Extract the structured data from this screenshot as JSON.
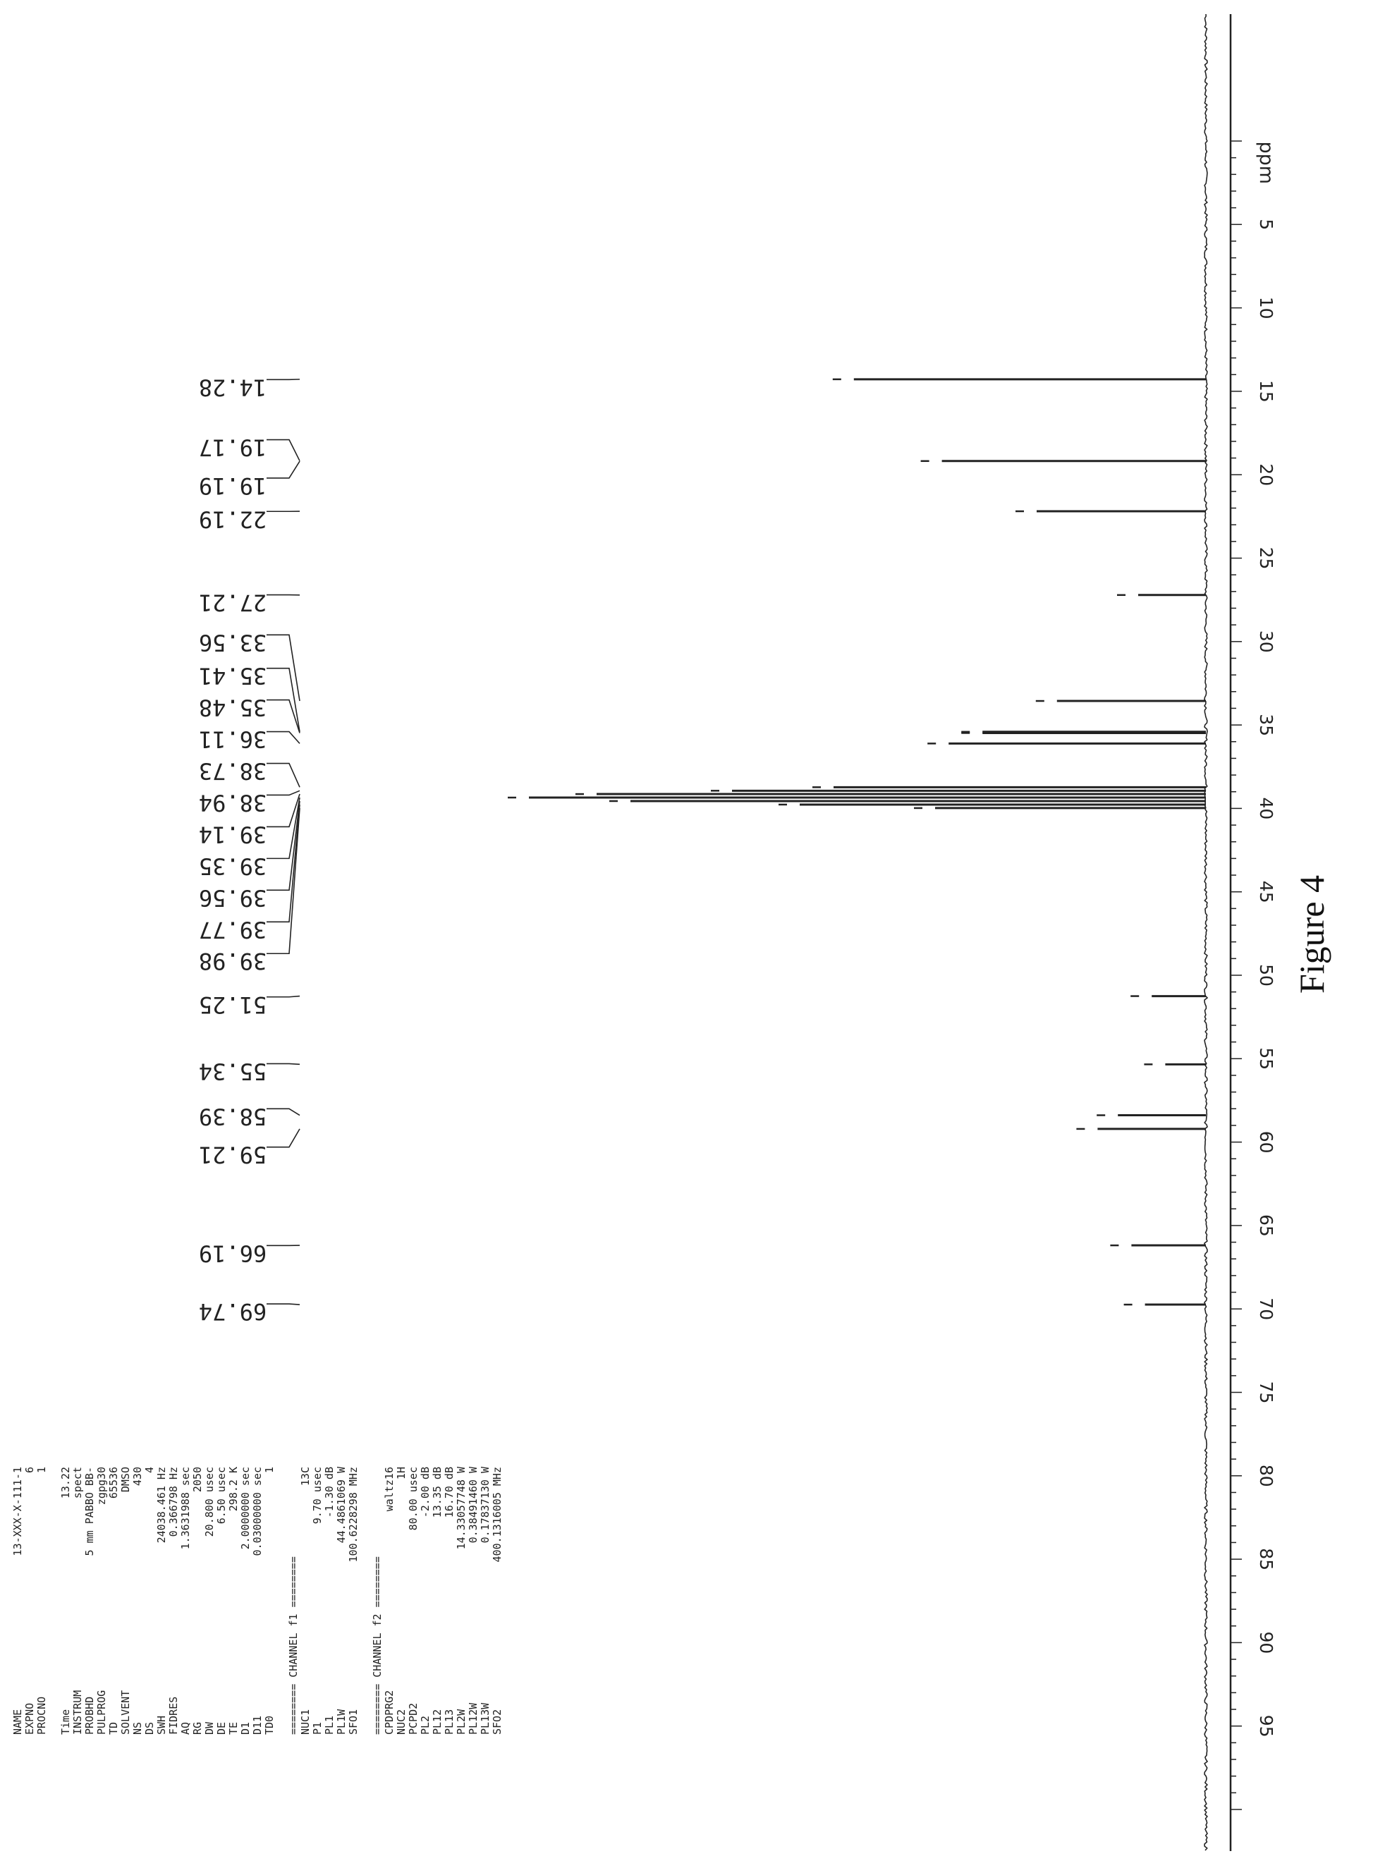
{
  "figure_caption": "Figure 4",
  "chart_data": {
    "type": "line",
    "title": "",
    "xlabel": "",
    "ylabel": "",
    "axis_unit": "ppm",
    "axis_reversed": true,
    "xlim": [
      100,
      0
    ],
    "ticks": [
      95,
      90,
      85,
      80,
      75,
      70,
      65,
      60,
      55,
      50,
      45,
      40,
      35,
      30,
      25,
      20,
      15,
      10,
      5
    ],
    "tick_labels": [
      "95",
      "90",
      "85",
      "80",
      "75",
      "70",
      "65",
      "60",
      "55",
      "50",
      "45",
      "40",
      "35",
      "30",
      "25",
      "20",
      "15",
      "10",
      "5"
    ],
    "peak_labels": [
      "14.28",
      "19.17",
      "19.19",
      "22.19",
      "27.21",
      "33.56",
      "35.41",
      "35.48",
      "36.11",
      "38.73",
      "38.94",
      "39.14",
      "39.35",
      "39.56",
      "39.77",
      "39.98",
      "51.25",
      "55.34",
      "58.39",
      "59.21",
      "66.19",
      "69.74"
    ],
    "peaks": [
      {
        "ppm": 14.28,
        "intensity": 0.52
      },
      {
        "ppm": 19.18,
        "intensity": 0.39
      },
      {
        "ppm": 22.19,
        "intensity": 0.25
      },
      {
        "ppm": 27.21,
        "intensity": 0.1
      },
      {
        "ppm": 33.56,
        "intensity": 0.22
      },
      {
        "ppm": 35.41,
        "intensity": 0.33
      },
      {
        "ppm": 35.48,
        "intensity": 0.33
      },
      {
        "ppm": 36.11,
        "intensity": 0.38
      },
      {
        "ppm": 38.73,
        "intensity": 0.55
      },
      {
        "ppm": 38.94,
        "intensity": 0.7
      },
      {
        "ppm": 39.14,
        "intensity": 0.9
      },
      {
        "ppm": 39.35,
        "intensity": 1.0
      },
      {
        "ppm": 39.56,
        "intensity": 0.85
      },
      {
        "ppm": 39.77,
        "intensity": 0.6
      },
      {
        "ppm": 39.98,
        "intensity": 0.4
      },
      {
        "ppm": 51.25,
        "intensity": 0.08
      },
      {
        "ppm": 55.34,
        "intensity": 0.06
      },
      {
        "ppm": 58.39,
        "intensity": 0.13
      },
      {
        "ppm": 59.21,
        "intensity": 0.16
      },
      {
        "ppm": 66.19,
        "intensity": 0.11
      },
      {
        "ppm": 69.74,
        "intensity": 0.09
      }
    ],
    "grid": false,
    "color": "#222222"
  },
  "params": {
    "block1": [
      [
        "NAME",
        "13-XXX-X-111-1"
      ],
      [
        "EXPNO",
        "6"
      ],
      [
        "PROCNO",
        "1"
      ]
    ],
    "block2": [
      [
        "Time",
        "13.22"
      ],
      [
        "INSTRUM",
        "spect"
      ],
      [
        "PROBHD",
        "5 mm PABBO BB-"
      ],
      [
        "PULPROG",
        "zgpg30"
      ],
      [
        "TD",
        "65536"
      ],
      [
        "SOLVENT",
        "DMSO"
      ],
      [
        "NS",
        "430"
      ],
      [
        "DS",
        "4"
      ],
      [
        "SWH",
        "24038.461 Hz"
      ],
      [
        "FIDRES",
        "0.366798 Hz"
      ],
      [
        "AQ",
        "1.3631988 sec"
      ],
      [
        "RG",
        "2050"
      ],
      [
        "DW",
        "20.800 usec"
      ],
      [
        "DE",
        "6.50 usec"
      ],
      [
        "TE",
        "298.2 K"
      ],
      [
        "D1",
        "2.0000000 sec"
      ],
      [
        "D11",
        "0.03000000 sec"
      ],
      [
        "TD0",
        "1"
      ]
    ],
    "header_f1": "======== CHANNEL f1 ========",
    "block3": [
      [
        "NUC1",
        "13C"
      ],
      [
        "P1",
        "9.70 usec"
      ],
      [
        "PL1",
        "-1.30 dB"
      ],
      [
        "PL1W",
        "44.4861069 W"
      ],
      [
        "SFO1",
        "100.6228298 MHz"
      ]
    ],
    "header_f2": "======== CHANNEL f2 ========",
    "block4": [
      [
        "CPDPRG2",
        "waltz16"
      ],
      [
        "NUC2",
        "1H"
      ],
      [
        "PCPD2",
        "80.00 usec"
      ],
      [
        "PL2",
        "-2.00 dB"
      ],
      [
        "PL12",
        "13.35 dB"
      ],
      [
        "PL13",
        "16.70 dB"
      ],
      [
        "PL2W",
        "14.33057748 W"
      ],
      [
        "PL12W",
        "0.38491460 W"
      ],
      [
        "PL13W",
        "0.17837130 W"
      ],
      [
        "SFO2",
        "400.1316005 MHz"
      ]
    ]
  }
}
